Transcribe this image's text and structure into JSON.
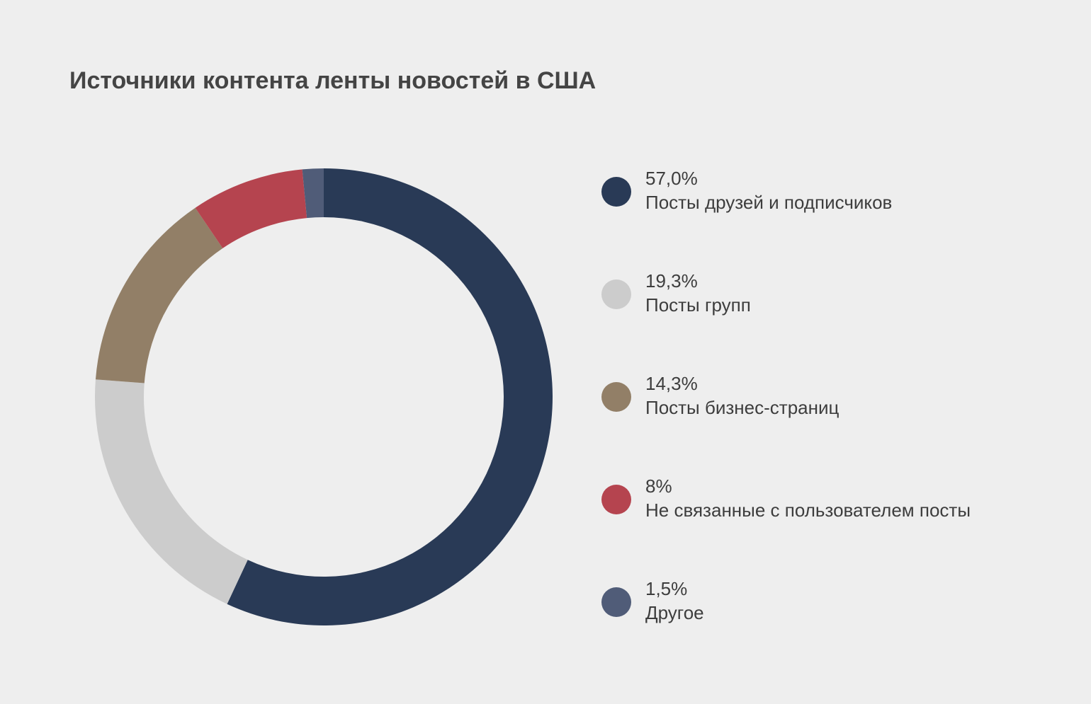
{
  "chart_data": {
    "type": "donut",
    "title": "Источники контента ленты новостей в США",
    "categories": [
      "Посты друзей и подписчиков",
      "Посты групп",
      "Посты бизнес-страниц",
      "Не связанные с пользователем посты",
      "Другое"
    ],
    "values": [
      57.0,
      19.3,
      14.3,
      8,
      1.5
    ],
    "value_labels": [
      "57,0%",
      "19,3%",
      "14,3%",
      "8%",
      "1,5%"
    ],
    "colors": [
      "#293a56",
      "#cccccc",
      "#927f67",
      "#b5444f",
      "#505c78"
    ]
  }
}
